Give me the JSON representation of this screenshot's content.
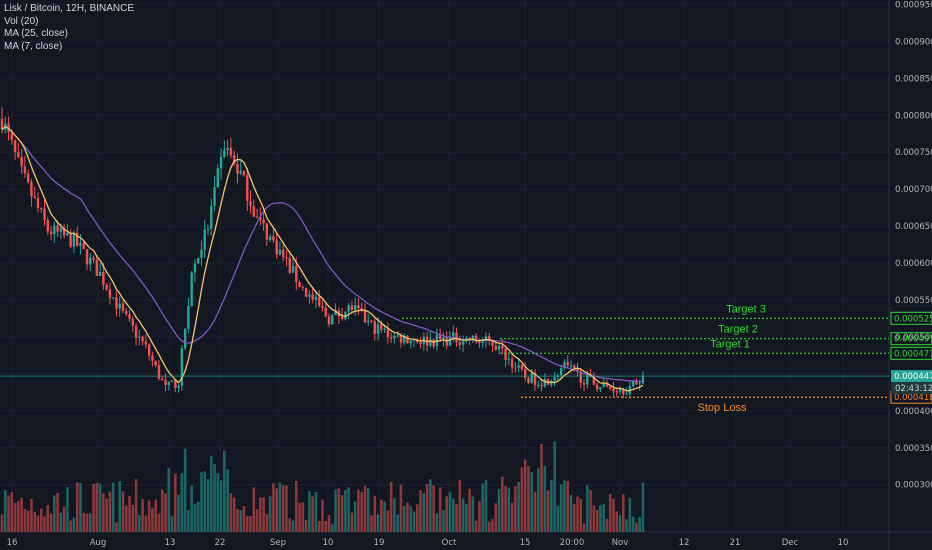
{
  "header": {
    "symbol_line": "Lisk / Bitcoin, 12H, BINANCE",
    "vol_label": "Vol (20)",
    "ma25_label": "MA (25, close)",
    "ma7_label": "MA (7, close)"
  },
  "colors": {
    "background": "#131722",
    "grid": "#1e2230",
    "up": "#26a69a",
    "down": "#ef5350",
    "ma25": "#7e57c2",
    "ma7": "#f5c469",
    "target": "#33d633",
    "stop": "#f28b25",
    "last_price": "#26a69a",
    "axis_text": "#b2b5be"
  },
  "chart_data": {
    "type": "candlestick",
    "y_axis": {
      "min": 0.000236,
      "max": 0.000956,
      "ticks": [
        "0.0003000",
        "0.0003500",
        "0.0004000",
        "0.0004500",
        "0.0005000",
        "0.0005500",
        "0.0006000",
        "0.0006500",
        "0.0007000",
        "0.0007500",
        "0.0008000",
        "0.0008500",
        "0.0009000",
        "0.0009500"
      ]
    },
    "x_axis": {
      "labels": [
        "16",
        "Aug",
        "13",
        "22",
        "Sep",
        "10",
        "19",
        "Oct",
        "15",
        "20:00",
        "Nov",
        "12",
        "21",
        "Dec",
        "10"
      ]
    },
    "key_points": [
      {
        "t": 0,
        "p": 0.000795
      },
      {
        "t": 6,
        "p": 0.00072
      },
      {
        "t": 14,
        "p": 0.000645
      },
      {
        "t": 22,
        "p": 0.00063
      },
      {
        "t": 30,
        "p": 0.000585
      },
      {
        "t": 37,
        "p": 0.00053
      },
      {
        "t": 44,
        "p": 0.000485
      },
      {
        "t": 50,
        "p": 0.00043
      },
      {
        "t": 54,
        "p": 0.00044
      },
      {
        "t": 58,
        "p": 0.000585
      },
      {
        "t": 63,
        "p": 0.00065
      },
      {
        "t": 68,
        "p": 0.00076
      },
      {
        "t": 73,
        "p": 0.00072
      },
      {
        "t": 78,
        "p": 0.00066
      },
      {
        "t": 85,
        "p": 0.000615
      },
      {
        "t": 92,
        "p": 0.000565
      },
      {
        "t": 100,
        "p": 0.000525
      },
      {
        "t": 107,
        "p": 0.00054
      },
      {
        "t": 113,
        "p": 0.000515
      },
      {
        "t": 120,
        "p": 0.0005
      },
      {
        "t": 130,
        "p": 0.000495
      },
      {
        "t": 140,
        "p": 0.000498
      },
      {
        "t": 150,
        "p": 0.000492
      },
      {
        "t": 155,
        "p": 0.00047
      },
      {
        "t": 160,
        "p": 0.000445
      },
      {
        "t": 166,
        "p": 0.00044
      },
      {
        "t": 172,
        "p": 0.00046
      },
      {
        "t": 178,
        "p": 0.000443
      },
      {
        "t": 184,
        "p": 0.000432
      },
      {
        "t": 192,
        "p": 0.00043
      },
      {
        "t": 196,
        "p": 0.000447
      }
    ],
    "levels": [
      {
        "name": "Target 3",
        "value": 0.0005252,
        "label": "0.0005252"
      },
      {
        "name": "Target 2",
        "value": 0.0004976,
        "label": "0.0004976"
      },
      {
        "name": "Target 1",
        "value": 0.0004778,
        "label": "0.0004778"
      },
      {
        "name": "Stop Loss",
        "value": 0.0004184,
        "label": "0.0004184"
      }
    ],
    "last_price": {
      "value": 0.000447,
      "label": "0.0004470",
      "countdown": "02:43:12"
    }
  }
}
